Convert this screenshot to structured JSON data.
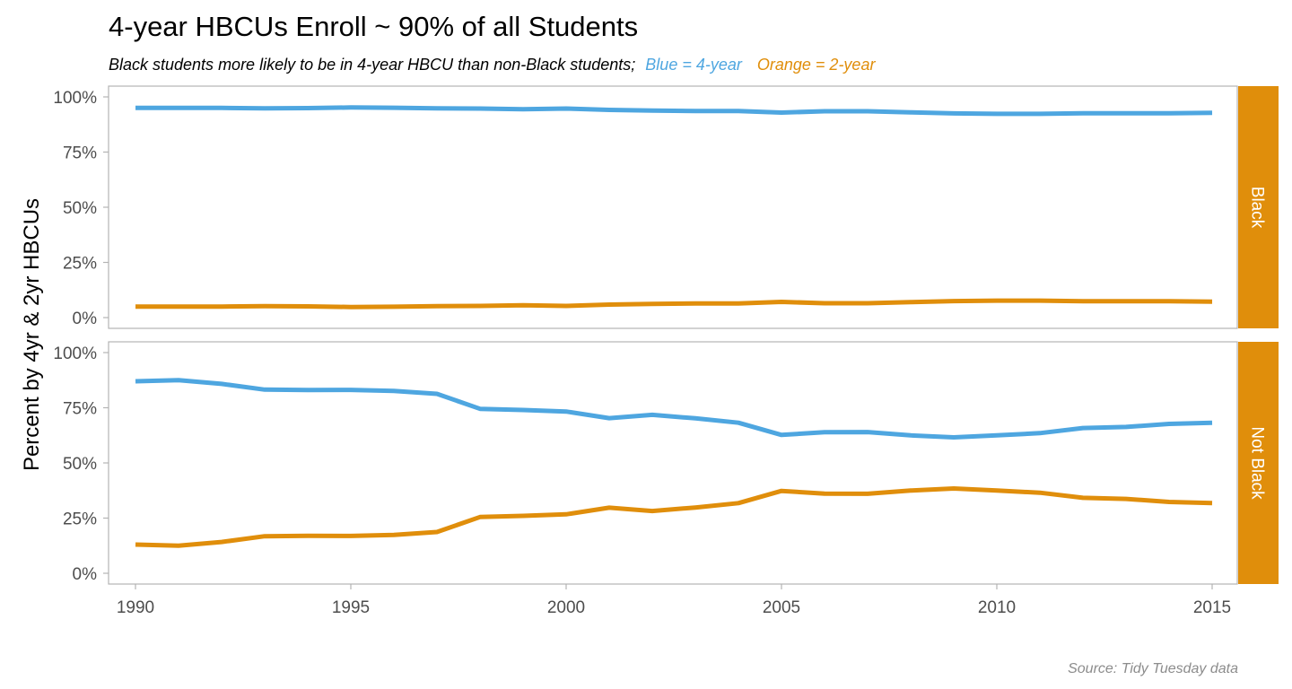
{
  "chart_data": {
    "type": "line",
    "title": "4-year HBCUs Enroll ~ 90% of all Students",
    "subtitle": {
      "text": "Black students more likely to be in 4-year HBCU than non-Black students;",
      "blue_text": "Blue = 4-year",
      "orange_text": "Orange = 2-year"
    },
    "ylabel": "Percent by 4yr & 2yr HBCUs",
    "xlabel": "",
    "caption": "Source: Tidy Tuesday data",
    "x_ticks": [
      "1990",
      "1995",
      "2000",
      "2005",
      "2010",
      "2015"
    ],
    "y_ticks": [
      "0%",
      "25%",
      "50%",
      "75%",
      "100%"
    ],
    "xlim": [
      1990,
      2015
    ],
    "ylim": [
      0,
      100
    ],
    "colors": {
      "four_year": "#4EA6E0",
      "two_year": "#E08E0B",
      "strip": "#E08E0B",
      "grid_frame": "#b3b3b3"
    },
    "x": [
      1990,
      1991,
      1992,
      1993,
      1994,
      1995,
      1996,
      1997,
      1998,
      1999,
      2000,
      2001,
      2002,
      2003,
      2004,
      2005,
      2006,
      2007,
      2008,
      2009,
      2010,
      2011,
      2012,
      2013,
      2014,
      2015
    ],
    "panels": [
      {
        "strip": "Black",
        "series": [
          {
            "key": "four_year",
            "values": [
              95.0,
              95.0,
              95.0,
              94.8,
              94.9,
              95.2,
              95.1,
              94.8,
              94.7,
              94.4,
              94.7,
              94.1,
              93.8,
              93.6,
              93.6,
              92.9,
              93.5,
              93.5,
              93.0,
              92.5,
              92.3,
              92.3,
              92.6,
              92.6,
              92.6,
              92.8
            ]
          },
          {
            "key": "two_year",
            "values": [
              5.0,
              5.0,
              5.0,
              5.2,
              5.1,
              4.8,
              4.9,
              5.2,
              5.3,
              5.6,
              5.3,
              5.9,
              6.2,
              6.4,
              6.4,
              7.1,
              6.5,
              6.5,
              7.0,
              7.5,
              7.7,
              7.7,
              7.4,
              7.4,
              7.4,
              7.2
            ]
          }
        ]
      },
      {
        "strip": "Not Black",
        "series": [
          {
            "key": "four_year",
            "values": [
              87.0,
              87.5,
              85.8,
              83.2,
              83.0,
              83.1,
              82.6,
              81.3,
              74.5,
              74.0,
              73.3,
              70.3,
              71.8,
              70.2,
              68.2,
              62.7,
              63.9,
              64.0,
              62.5,
              61.6,
              62.5,
              63.5,
              65.8,
              66.3,
              67.7,
              68.2
            ]
          },
          {
            "key": "two_year",
            "values": [
              13.0,
              12.5,
              14.2,
              16.8,
              17.0,
              16.9,
              17.4,
              18.7,
              25.5,
              26.0,
              26.7,
              29.7,
              28.2,
              29.8,
              31.8,
              37.3,
              36.1,
              36.0,
              37.5,
              38.4,
              37.5,
              36.5,
              34.2,
              33.7,
              32.3,
              31.8
            ]
          }
        ]
      }
    ]
  }
}
